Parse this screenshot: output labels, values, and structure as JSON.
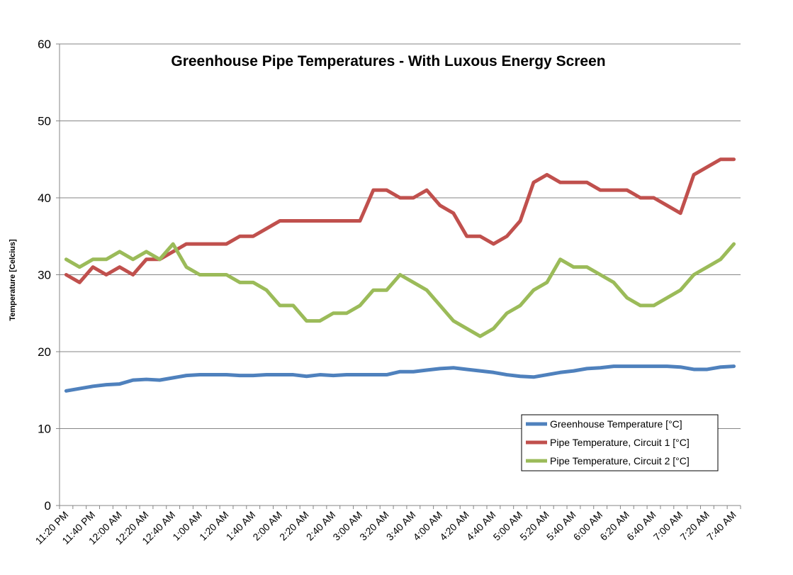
{
  "chart_data": {
    "type": "line",
    "title": "Greenhouse Pipe Temperatures - With Luxous Energy Screen",
    "xlabel": "",
    "ylabel": "Temperature [Celcius]",
    "ylim": [
      0,
      60
    ],
    "yticks": [
      0,
      10,
      20,
      30,
      40,
      50,
      60
    ],
    "grid": true,
    "legend_position": "bottom-right",
    "x_tick_labels": [
      "11:20 PM",
      "11:40 PM",
      "12:00 AM",
      "12:20 AM",
      "12:40 AM",
      "1:00 AM",
      "1:20 AM",
      "1:40 AM",
      "2:00 AM",
      "2:20 AM",
      "2:40 AM",
      "3:00 AM",
      "3:20 AM",
      "3:40 AM",
      "4:00 AM",
      "4:20 AM",
      "4:40 AM",
      "5:00 AM",
      "5:20 AM",
      "5:40 AM",
      "6:00 AM",
      "6:20 AM",
      "6:40 AM",
      "7:00 AM",
      "7:20 AM",
      "7:40 AM"
    ],
    "x_interval_minutes": 10,
    "series": [
      {
        "name": "Greenhouse Temperature [°C]",
        "color": "#4f81bd",
        "values": [
          14.9,
          15.2,
          15.5,
          15.7,
          15.8,
          16.3,
          16.4,
          16.3,
          16.6,
          16.9,
          17.0,
          17.0,
          17.0,
          16.9,
          16.9,
          17.0,
          17.0,
          17.0,
          16.8,
          17.0,
          16.9,
          17.0,
          17.0,
          17.0,
          17.0,
          17.4,
          17.4,
          17.6,
          17.8,
          17.9,
          17.7,
          17.5,
          17.3,
          17.0,
          16.8,
          16.7,
          17.0,
          17.3,
          17.5,
          17.8,
          17.9,
          18.1,
          18.1,
          18.1,
          18.1,
          18.1,
          18.0,
          17.7,
          17.7,
          18.0,
          18.1
        ]
      },
      {
        "name": "Pipe Temperature, Circuit 1 [°C]",
        "color": "#c0504d",
        "values": [
          30,
          29,
          31,
          30,
          31,
          30,
          32,
          32,
          33,
          34,
          34,
          34,
          34,
          35,
          35,
          36,
          37,
          37,
          37,
          37,
          37,
          37,
          37,
          41,
          41,
          40,
          40,
          41,
          39,
          38,
          35,
          35,
          34,
          35,
          37,
          42,
          43,
          42,
          42,
          42,
          41,
          41,
          41,
          40,
          40,
          39,
          38,
          43,
          44,
          45,
          45
        ]
      },
      {
        "name": "Pipe Temperature, Circuit 2 [°C]",
        "color": "#9bbb59",
        "values": [
          32,
          31,
          32,
          32,
          33,
          32,
          33,
          32,
          34,
          31,
          30,
          30,
          30,
          29,
          29,
          28,
          26,
          26,
          24,
          24,
          25,
          25,
          26,
          28,
          28,
          30,
          29,
          28,
          26,
          24,
          23,
          22,
          23,
          25,
          26,
          28,
          29,
          32,
          31,
          31,
          30,
          29,
          27,
          26,
          26,
          27,
          28,
          30,
          31,
          32,
          34
        ]
      }
    ]
  }
}
